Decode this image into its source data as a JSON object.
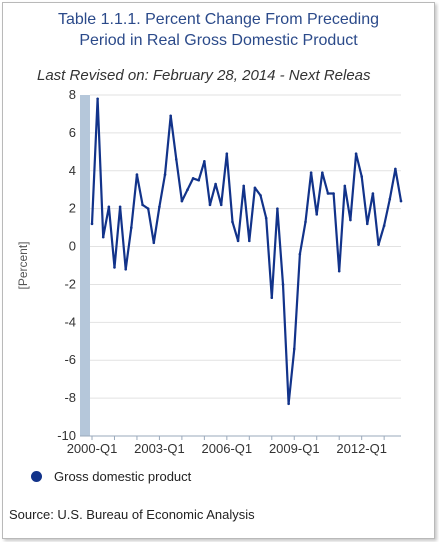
{
  "title_line1": "Table 1.1.1. Percent Change From Preceding",
  "title_line2": "Period in Real Gross Domestic Product",
  "revised_text": "Last Revised on: February 28, 2014 - Next Releas",
  "source_text": "Source: U.S. Bureau of Economic Analysis",
  "colors": {
    "line": "#12338a",
    "title": "#2b4a8a",
    "axis_band": "#b5c7da"
  },
  "chart_data": {
    "type": "line",
    "title": "Table 1.1.1. Percent Change From Preceding Period in Real Gross Domestic Product",
    "xlabel": "",
    "ylabel": "[Percent]",
    "ylim": [
      -10,
      8
    ],
    "yticks": [
      8,
      6,
      4,
      2,
      0,
      -2,
      -4,
      -6,
      -8,
      -10
    ],
    "xtick_labels": [
      "2000-Q1",
      "2003-Q1",
      "2006-Q1",
      "2009-Q1",
      "2012-Q1"
    ],
    "xtick_index": [
      0,
      12,
      24,
      36,
      48
    ],
    "grid": "horizontal",
    "legend_position": "bottom-left",
    "series": [
      {
        "name": "Gross domestic product",
        "x": [
          "2000-Q1",
          "2000-Q2",
          "2000-Q3",
          "2000-Q4",
          "2001-Q1",
          "2001-Q2",
          "2001-Q3",
          "2001-Q4",
          "2002-Q1",
          "2002-Q2",
          "2002-Q3",
          "2002-Q4",
          "2003-Q1",
          "2003-Q2",
          "2003-Q3",
          "2003-Q4",
          "2004-Q1",
          "2004-Q2",
          "2004-Q3",
          "2004-Q4",
          "2005-Q1",
          "2005-Q2",
          "2005-Q3",
          "2005-Q4",
          "2006-Q1",
          "2006-Q2",
          "2006-Q3",
          "2006-Q4",
          "2007-Q1",
          "2007-Q2",
          "2007-Q3",
          "2007-Q4",
          "2008-Q1",
          "2008-Q2",
          "2008-Q3",
          "2008-Q4",
          "2009-Q1",
          "2009-Q2",
          "2009-Q3",
          "2009-Q4",
          "2010-Q1",
          "2010-Q2",
          "2010-Q3",
          "2010-Q4",
          "2011-Q1",
          "2011-Q2",
          "2011-Q3",
          "2011-Q4",
          "2012-Q1",
          "2012-Q2",
          "2012-Q3",
          "2012-Q4",
          "2013-Q1",
          "2013-Q2",
          "2013-Q3",
          "2013-Q4"
        ],
        "values": [
          1.2,
          7.8,
          0.5,
          2.1,
          -1.1,
          2.1,
          -1.2,
          1.0,
          3.8,
          2.2,
          2.0,
          0.2,
          2.1,
          3.8,
          6.9,
          4.6,
          2.4,
          3.0,
          3.6,
          3.5,
          4.5,
          2.2,
          3.3,
          2.2,
          4.9,
          1.3,
          0.3,
          3.2,
          0.3,
          3.1,
          2.7,
          1.5,
          -2.7,
          2.0,
          -2.0,
          -8.3,
          -5.4,
          -0.4,
          1.3,
          3.9,
          1.7,
          3.9,
          2.8,
          2.8,
          -1.3,
          3.2,
          1.4,
          4.9,
          3.7,
          1.2,
          2.8,
          0.1,
          1.1,
          2.5,
          4.1,
          2.4
        ]
      }
    ]
  }
}
